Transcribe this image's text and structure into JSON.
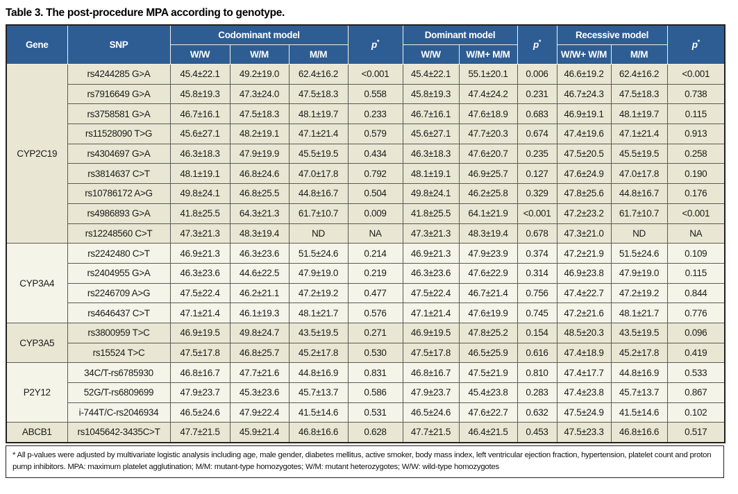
{
  "title": "Table 3. The post-procedure MPA according to genotype.",
  "colors": {
    "header_blue": "#2e5d93",
    "row_beige": "#e9e6d3",
    "row_cream": "#f5f4e9",
    "border_dark": "#231f20"
  },
  "table": {
    "header": {
      "gene": "Gene",
      "snp": "SNP",
      "codominant": "Codominant model",
      "dominant": "Dominant model",
      "recessive": "Recessive model",
      "p_label": "p",
      "p_star": "*",
      "codominant_cols": [
        "W/W",
        "W/M",
        "M/M"
      ],
      "dominant_cols": [
        "W/W",
        "W/M+ M/M"
      ],
      "recessive_cols": [
        "W/W+ W/M",
        "M/M"
      ]
    },
    "groups": [
      {
        "gene": "CYP2C19",
        "rows": [
          {
            "snp": "rs4244285 G>A",
            "cells": [
              "45.4±22.1",
              "49.2±19.0",
              "62.4±16.2",
              "<0.001",
              "45.4±22.1",
              "55.1±20.1",
              "0.006",
              "46.6±19.2",
              "62.4±16.2",
              "<0.001"
            ]
          },
          {
            "snp": "rs7916649 G>A",
            "cells": [
              "45.8±19.3",
              "47.3±24.0",
              "47.5±18.3",
              "0.558",
              "45.8±19.3",
              "47.4±24.2",
              "0.231",
              "46.7±24.3",
              "47.5±18.3",
              "0.738"
            ]
          },
          {
            "snp": "rs3758581 G>A",
            "cells": [
              "46.7±16.1",
              "47.5±18.3",
              "48.1±19.7",
              "0.233",
              "46.7±16.1",
              "47.6±18.9",
              "0.683",
              "46.9±19.1",
              "48.1±19.7",
              "0.115"
            ]
          },
          {
            "snp": "rs11528090 T>G",
            "cells": [
              "45.6±27.1",
              "48.2±19.1",
              "47.1±21.4",
              "0.579",
              "45.6±27.1",
              "47.7±20.3",
              "0.674",
              "47.4±19.6",
              "47.1±21.4",
              "0.913"
            ]
          },
          {
            "snp": "rs4304697 G>A",
            "cells": [
              "46.3±18.3",
              "47.9±19.9",
              "45.5±19.5",
              "0.434",
              "46.3±18.3",
              "47.6±20.7",
              "0.235",
              "47.5±20.5",
              "45.5±19.5",
              "0.258"
            ]
          },
          {
            "snp": "rs3814637 C>T",
            "cells": [
              "48.1±19.1",
              "46.8±24.6",
              "47.0±17.8",
              "0.792",
              "48.1±19.1",
              "46.9±25.7",
              "0.127",
              "47.6±24.9",
              "47.0±17.8",
              "0.190"
            ]
          },
          {
            "snp": "rs10786172 A>G",
            "cells": [
              "49.8±24.1",
              "46.8±25.5",
              "44.8±16.7",
              "0.504",
              "49.8±24.1",
              "46.2±25.8",
              "0.329",
              "47.8±25.6",
              "44.8±16.7",
              "0.176"
            ]
          },
          {
            "snp": "rs4986893 G>A",
            "cells": [
              "41.8±25.5",
              "64.3±21.3",
              "61.7±10.7",
              "0.009",
              "41.8±25.5",
              "64.1±21.9",
              "<0.001",
              "47.2±23.2",
              "61.7±10.7",
              "<0.001"
            ]
          },
          {
            "snp": "rs12248560 C>T",
            "cells": [
              "47.3±21.3",
              "48.3±19.4",
              "ND",
              "NA",
              "47.3±21.3",
              "48.3±19.4",
              "0.678",
              "47.3±21.0",
              "ND",
              "NA"
            ]
          }
        ]
      },
      {
        "gene": "CYP3A4",
        "rows": [
          {
            "snp": "rs2242480 C>T",
            "cells": [
              "46.9±21.3",
              "46.3±23.6",
              "51.5±24.6",
              "0.214",
              "46.9±21.3",
              "47.9±23.9",
              "0.374",
              "47.2±21.9",
              "51.5±24.6",
              "0.109"
            ]
          },
          {
            "snp": "rs2404955 G>A",
            "cells": [
              "46.3±23.6",
              "44.6±22.5",
              "47.9±19.0",
              "0.219",
              "46.3±23.6",
              "47.6±22.9",
              "0.314",
              "46.9±23.8",
              "47.9±19.0",
              "0.115"
            ]
          },
          {
            "snp": "rs2246709 A>G",
            "cells": [
              "47.5±22.4",
              "46.2±21.1",
              "47.2±19.2",
              "0.477",
              "47.5±22.4",
              "46.7±21.4",
              "0.756",
              "47.4±22.7",
              "47.2±19.2",
              "0.844"
            ]
          },
          {
            "snp": "rs4646437 C>T",
            "cells": [
              "47.1±21.4",
              "46.1±19.3",
              "48.1±21.7",
              "0.576",
              "47.1±21.4",
              "47.6±19.9",
              "0.745",
              "47.2±21.6",
              "48.1±21.7",
              "0.776"
            ]
          }
        ]
      },
      {
        "gene": "CYP3A5",
        "rows": [
          {
            "snp": "rs3800959 T>C",
            "cells": [
              "46.9±19.5",
              "49.8±24.7",
              "43.5±19.5",
              "0.271",
              "46.9±19.5",
              "47.8±25.2",
              "0.154",
              "48.5±20.3",
              "43.5±19.5",
              "0.096"
            ]
          },
          {
            "snp": "rs15524 T>C",
            "cells": [
              "47.5±17.8",
              "46.8±25.7",
              "45.2±17.8",
              "0.530",
              "47.5±17.8",
              "46.5±25.9",
              "0.616",
              "47.4±18.9",
              "45.2±17.8",
              "0.419"
            ]
          }
        ]
      },
      {
        "gene": "P2Y12",
        "rows": [
          {
            "snp": "34C/T-rs6785930",
            "cells": [
              "46.8±16.7",
              "47.7±21.6",
              "44.8±16.9",
              "0.831",
              "46.8±16.7",
              "47.5±21.9",
              "0.810",
              "47.4±17.7",
              "44.8±16.9",
              "0.533"
            ]
          },
          {
            "snp": "52G/T-rs6809699",
            "cells": [
              "47.9±23.7",
              "45.3±23.6",
              "45.7±13.7",
              "0.586",
              "47.9±23.7",
              "45.4±23.8",
              "0.283",
              "47.4±23.8",
              "45.7±13.7",
              "0.867"
            ]
          },
          {
            "snp": "i-744T/C-rs2046934",
            "cells": [
              "46.5±24.6",
              "47.9±22.4",
              "41.5±14.6",
              "0.531",
              "46.5±24.6",
              "47.6±22.7",
              "0.632",
              "47.5±24.9",
              "41.5±14.6",
              "0.102"
            ]
          }
        ]
      },
      {
        "gene": "ABCB1",
        "rows": [
          {
            "snp": "rs1045642-3435C>T",
            "cells": [
              "47.7±21.5",
              "45.9±21.4",
              "46.8±16.6",
              "0.628",
              "47.7±21.5",
              "46.4±21.5",
              "0.453",
              "47.5±23.3",
              "46.8±16.6",
              "0.517"
            ]
          }
        ]
      }
    ]
  },
  "footnote": "* All p-values were adjusted by multivariate logistic analysis including age, male gender, diabetes mellitus, active smoker, body mass index, left ventricular ejection fraction, hypertension, platelet count and proton pump inhibitors. MPA: maximum platelet agglutination; M/M: mutant-type homozygotes; W/M: mutant heterozygotes; W/W: wild-type homozygotes"
}
